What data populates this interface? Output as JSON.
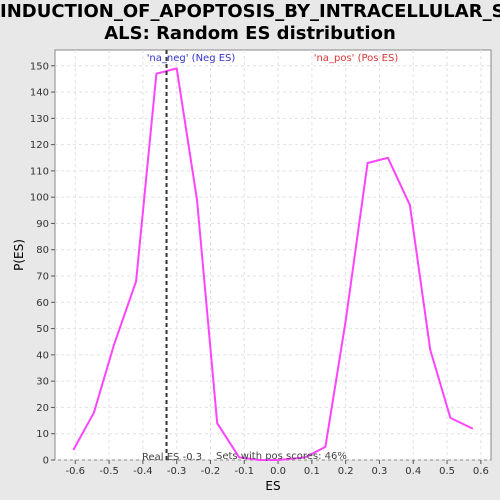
{
  "chart_data": {
    "type": "line",
    "title_line1": "INDUCTION_OF_APOPTOSIS_BY_INTRACELLULAR_SIGN",
    "title_line2": "ALS: Random ES distribution",
    "xlabel": "ES",
    "ylabel": "P(ES)",
    "xlim": [
      -0.66,
      0.63
    ],
    "ylim": [
      0,
      156
    ],
    "xticks": [
      -0.6,
      -0.5,
      -0.4,
      -0.3,
      -0.2,
      -0.1,
      0.0,
      0.1,
      0.2,
      0.3,
      0.4,
      0.5,
      0.6
    ],
    "xtick_labels": [
      "-0.6",
      "-0.5",
      "-0.4",
      "-0.3",
      "-0.2",
      "-0.1",
      "0.0",
      "0.1",
      "0.2",
      "0.3",
      "0.4",
      "0.5",
      "0.6"
    ],
    "yticks": [
      0,
      10,
      20,
      30,
      40,
      50,
      60,
      70,
      80,
      90,
      100,
      110,
      120,
      130,
      140,
      150
    ],
    "grid": true,
    "line_color": "#ff44ff",
    "series": [
      {
        "x": [
          -0.605,
          -0.545,
          -0.485,
          -0.42,
          -0.36,
          -0.3,
          -0.24,
          -0.18,
          -0.115,
          -0.055,
          0.0,
          0.08,
          0.14,
          0.2,
          0.265,
          0.325,
          0.39,
          0.45,
          0.51,
          0.575
        ],
        "y": [
          4,
          18,
          44,
          68,
          147,
          149,
          99,
          14,
          1,
          0,
          0,
          1,
          5,
          53,
          113,
          115,
          97,
          42,
          16,
          12
        ]
      }
    ],
    "real_es": {
      "x": -0.33,
      "label": "Real ES -0.3",
      "color": "#333333"
    },
    "annotations": {
      "neg_label": "'na_neg' (Neg ES)",
      "neg_color": "#3333cc",
      "pos_label": "'na_pos' (Pos ES)",
      "pos_color": "#dd3333",
      "sets_label": "Sets with pos scores: 46%"
    }
  }
}
